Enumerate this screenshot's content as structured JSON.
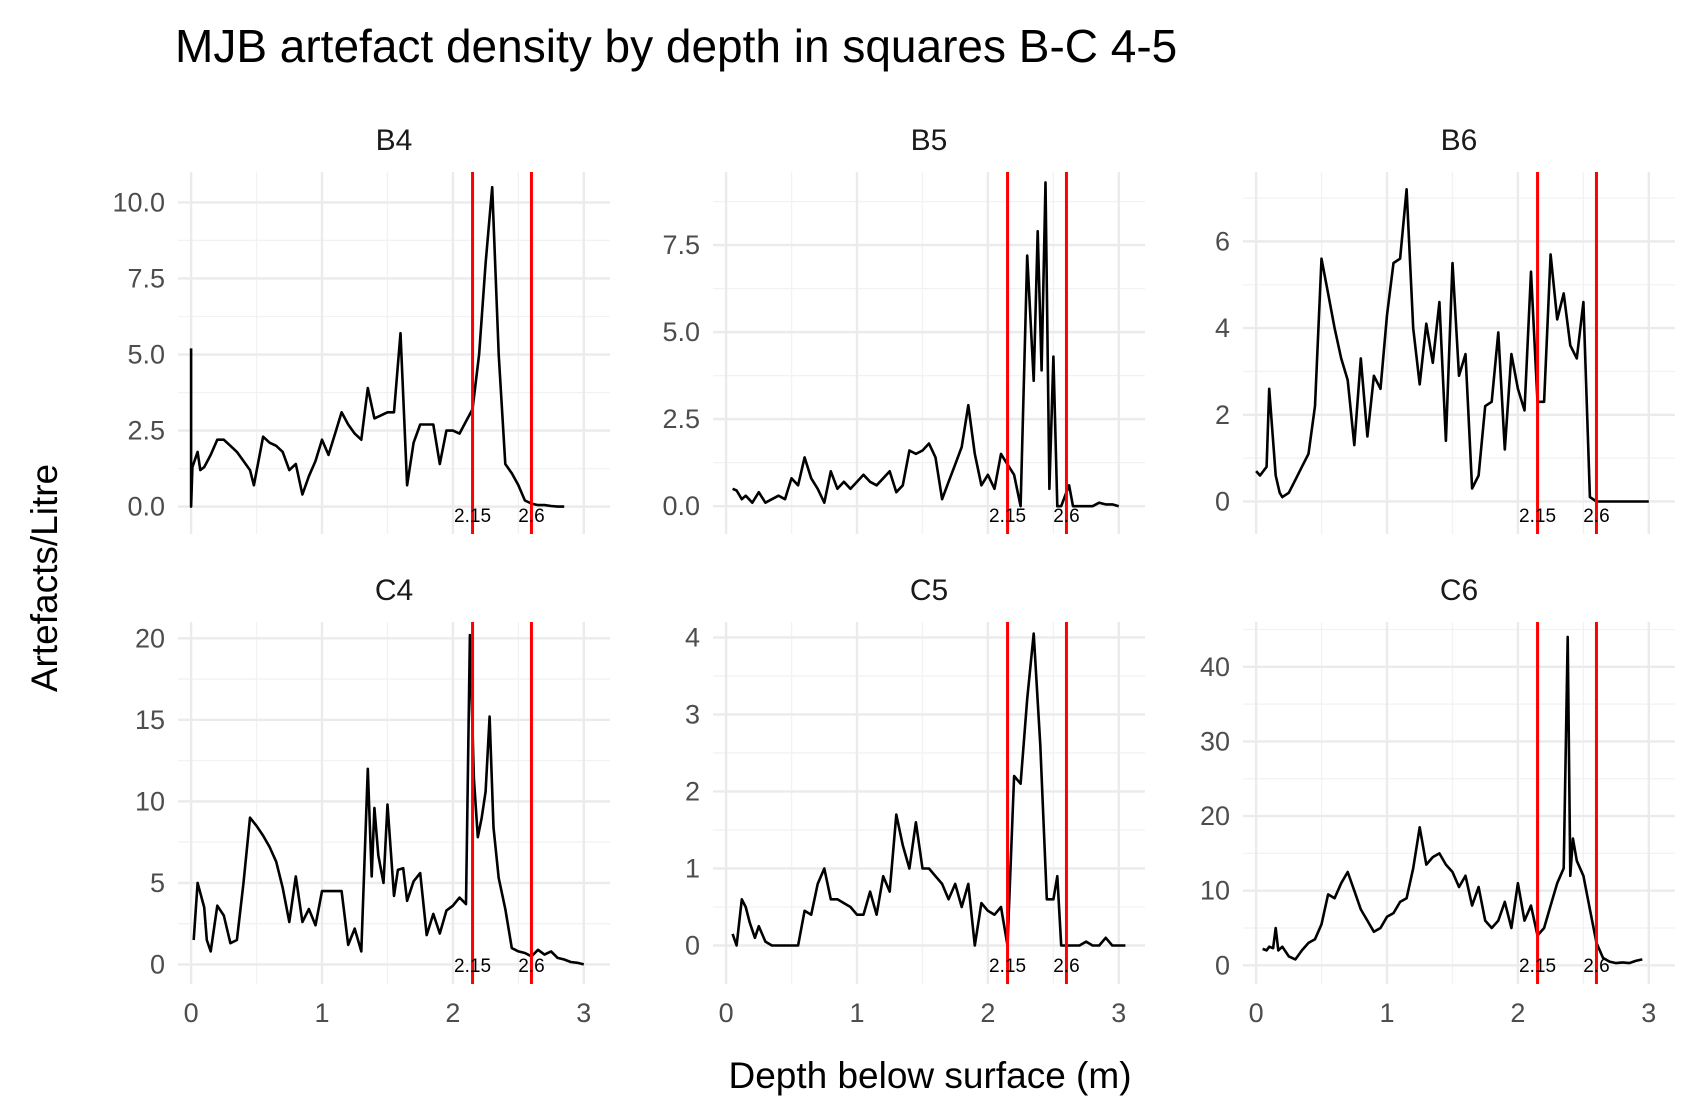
{
  "chart_data": {
    "type": "line",
    "title": "MJB artefact density by depth in squares B-C 4-5",
    "xlabel": "Depth below surface (m)",
    "ylabel": "Artefacts/Litre",
    "xlim": [
      -0.1,
      3.2
    ],
    "x_ticks": [
      0,
      1,
      2,
      3
    ],
    "grid": true,
    "legend": "none",
    "vlines": [
      2.15,
      2.6
    ],
    "vline_labels": [
      "2.15",
      "2.6"
    ],
    "vline_color": "#ff0000",
    "line_color": "#000000",
    "panels": [
      {
        "name": "B4",
        "ylim": [
          -0.9,
          11.0
        ],
        "y_ticks": [
          0,
          2.5,
          5,
          7.5,
          10
        ],
        "y_tick_labels": [
          "0.0",
          "2.5",
          "5.0",
          "7.5",
          "10.0"
        ],
        "x": [
          0.0,
          0.0,
          0.01,
          0.05,
          0.07,
          0.1,
          0.15,
          0.2,
          0.25,
          0.3,
          0.35,
          0.4,
          0.45,
          0.48,
          0.55,
          0.6,
          0.65,
          0.7,
          0.75,
          0.8,
          0.85,
          0.9,
          0.95,
          1.0,
          1.05,
          1.1,
          1.15,
          1.2,
          1.25,
          1.3,
          1.35,
          1.4,
          1.45,
          1.5,
          1.55,
          1.6,
          1.65,
          1.7,
          1.75,
          1.8,
          1.85,
          1.9,
          1.95,
          2.0,
          2.05,
          2.1,
          2.15,
          2.2,
          2.25,
          2.3,
          2.35,
          2.4,
          2.45,
          2.5,
          2.55,
          2.6,
          2.65,
          2.7,
          2.75,
          2.8,
          2.85
        ],
        "y": [
          5.2,
          0.0,
          1.3,
          1.8,
          1.2,
          1.3,
          1.7,
          2.2,
          2.2,
          2.0,
          1.8,
          1.5,
          1.2,
          0.7,
          2.3,
          2.1,
          2.0,
          1.8,
          1.2,
          1.4,
          0.4,
          1.0,
          1.5,
          2.2,
          1.7,
          2.4,
          3.1,
          2.7,
          2.4,
          2.2,
          3.9,
          2.9,
          3.0,
          3.1,
          3.1,
          5.7,
          0.7,
          2.1,
          2.7,
          2.7,
          2.7,
          1.4,
          2.5,
          2.5,
          2.4,
          2.8,
          3.2,
          5.0,
          8.0,
          10.5,
          5.0,
          1.4,
          1.1,
          0.7,
          0.2,
          0.1,
          0.05,
          0.05,
          0.02,
          0.0,
          0.0
        ]
      },
      {
        "name": "B5",
        "ylim": [
          -0.8,
          9.6
        ],
        "y_ticks": [
          0,
          2.5,
          5,
          7.5
        ],
        "y_tick_labels": [
          "0.0",
          "2.5",
          "5.0",
          "7.5"
        ],
        "x": [
          0.05,
          0.08,
          0.12,
          0.15,
          0.2,
          0.25,
          0.3,
          0.35,
          0.4,
          0.45,
          0.5,
          0.55,
          0.6,
          0.65,
          0.7,
          0.75,
          0.8,
          0.85,
          0.9,
          0.95,
          1.0,
          1.05,
          1.1,
          1.15,
          1.2,
          1.25,
          1.3,
          1.35,
          1.4,
          1.45,
          1.5,
          1.55,
          1.6,
          1.65,
          1.7,
          1.75,
          1.8,
          1.85,
          1.9,
          1.95,
          2.0,
          2.05,
          2.1,
          2.15,
          2.2,
          2.25,
          2.3,
          2.35,
          2.38,
          2.41,
          2.44,
          2.47,
          2.5,
          2.53,
          2.56,
          2.59,
          2.62,
          2.65,
          2.7,
          2.75,
          2.8,
          2.85,
          2.9,
          2.95,
          3.0
        ],
        "y": [
          0.5,
          0.45,
          0.2,
          0.3,
          0.1,
          0.4,
          0.1,
          0.2,
          0.3,
          0.2,
          0.8,
          0.6,
          1.4,
          0.8,
          0.5,
          0.1,
          1.0,
          0.5,
          0.7,
          0.5,
          0.7,
          0.9,
          0.7,
          0.6,
          0.8,
          1.0,
          0.4,
          0.6,
          1.6,
          1.5,
          1.6,
          1.8,
          1.4,
          0.2,
          0.7,
          1.2,
          1.7,
          2.9,
          1.5,
          0.6,
          0.9,
          0.5,
          1.5,
          1.2,
          0.9,
          0.0,
          7.2,
          3.6,
          7.9,
          3.9,
          9.3,
          0.5,
          4.3,
          0.0,
          0.0,
          0.3,
          0.6,
          0.0,
          0.0,
          0.0,
          0.0,
          0.1,
          0.05,
          0.05,
          0.0
        ]
      },
      {
        "name": "B6",
        "ylim": [
          -0.75,
          7.6
        ],
        "y_ticks": [
          0,
          2,
          4,
          6
        ],
        "y_tick_labels": [
          "0",
          "2",
          "4",
          "6"
        ],
        "x": [
          0.0,
          0.03,
          0.08,
          0.1,
          0.15,
          0.18,
          0.2,
          0.25,
          0.3,
          0.35,
          0.4,
          0.45,
          0.5,
          0.55,
          0.6,
          0.65,
          0.7,
          0.75,
          0.8,
          0.85,
          0.9,
          0.95,
          1.0,
          1.05,
          1.1,
          1.15,
          1.2,
          1.25,
          1.3,
          1.35,
          1.4,
          1.45,
          1.5,
          1.55,
          1.6,
          1.65,
          1.7,
          1.75,
          1.8,
          1.85,
          1.9,
          1.95,
          2.0,
          2.05,
          2.1,
          2.15,
          2.2,
          2.25,
          2.3,
          2.35,
          2.4,
          2.45,
          2.5,
          2.55,
          2.6,
          2.65,
          2.7,
          2.75,
          2.8,
          2.85,
          2.9,
          2.95,
          3.0
        ],
        "y": [
          0.7,
          0.6,
          0.8,
          2.6,
          0.6,
          0.2,
          0.1,
          0.2,
          0.5,
          0.8,
          1.1,
          2.2,
          5.6,
          4.8,
          4.0,
          3.3,
          2.8,
          1.3,
          3.3,
          1.5,
          2.9,
          2.6,
          4.3,
          5.5,
          5.6,
          7.2,
          4.0,
          2.7,
          4.1,
          3.2,
          4.6,
          1.4,
          5.5,
          2.9,
          3.4,
          0.3,
          0.6,
          2.2,
          2.3,
          3.9,
          1.2,
          3.4,
          2.6,
          2.1,
          5.3,
          2.3,
          2.3,
          5.7,
          4.2,
          4.8,
          3.6,
          3.3,
          4.6,
          0.1,
          0.0,
          0.0,
          0.0,
          0.0,
          0.0,
          0.0,
          0.0,
          0.0,
          0.0
        ]
      },
      {
        "name": "C4",
        "ylim": [
          -1.2,
          21.0
        ],
        "y_ticks": [
          0,
          5,
          10,
          15,
          20
        ],
        "y_tick_labels": [
          "0",
          "5",
          "10",
          "15",
          "20"
        ],
        "x": [
          0.02,
          0.05,
          0.1,
          0.12,
          0.15,
          0.2,
          0.25,
          0.3,
          0.35,
          0.4,
          0.45,
          0.5,
          0.55,
          0.6,
          0.65,
          0.7,
          0.75,
          0.8,
          0.85,
          0.9,
          0.95,
          1.0,
          1.05,
          1.1,
          1.15,
          1.2,
          1.25,
          1.3,
          1.35,
          1.38,
          1.4,
          1.43,
          1.47,
          1.5,
          1.55,
          1.58,
          1.62,
          1.65,
          1.7,
          1.75,
          1.8,
          1.85,
          1.9,
          1.95,
          2.0,
          2.05,
          2.1,
          2.13,
          2.16,
          2.19,
          2.22,
          2.25,
          2.28,
          2.31,
          2.35,
          2.4,
          2.45,
          2.5,
          2.55,
          2.6,
          2.65,
          2.7,
          2.75,
          2.8,
          2.85,
          2.9,
          2.95,
          3.0
        ],
        "y": [
          1.5,
          5.0,
          3.5,
          1.5,
          0.8,
          3.6,
          3.0,
          1.3,
          1.5,
          5.0,
          9.0,
          8.5,
          7.9,
          7.2,
          6.3,
          4.7,
          2.6,
          5.4,
          2.6,
          3.4,
          2.4,
          4.5,
          4.5,
          4.5,
          4.5,
          1.2,
          2.2,
          0.8,
          12.0,
          5.4,
          9.6,
          6.7,
          5.0,
          9.8,
          4.2,
          5.8,
          5.9,
          3.9,
          5.1,
          5.6,
          1.8,
          3.1,
          1.9,
          3.3,
          3.6,
          4.1,
          3.7,
          20.2,
          11.4,
          7.8,
          9.0,
          10.6,
          15.2,
          8.4,
          5.3,
          3.4,
          1.0,
          0.8,
          0.7,
          0.5,
          0.9,
          0.6,
          0.8,
          0.4,
          0.3,
          0.15,
          0.1,
          0.0
        ]
      },
      {
        "name": "C5",
        "ylim": [
          -0.5,
          4.2
        ],
        "y_ticks": [
          0,
          1,
          2,
          3,
          4
        ],
        "y_tick_labels": [
          "0",
          "1",
          "2",
          "3",
          "4"
        ],
        "x": [
          0.05,
          0.08,
          0.12,
          0.15,
          0.18,
          0.22,
          0.25,
          0.3,
          0.35,
          0.4,
          0.45,
          0.5,
          0.55,
          0.6,
          0.65,
          0.7,
          0.75,
          0.8,
          0.85,
          0.9,
          0.95,
          1.0,
          1.05,
          1.1,
          1.15,
          1.2,
          1.25,
          1.3,
          1.35,
          1.4,
          1.45,
          1.5,
          1.55,
          1.6,
          1.65,
          1.7,
          1.75,
          1.8,
          1.85,
          1.9,
          1.95,
          2.0,
          2.05,
          2.1,
          2.15,
          2.2,
          2.25,
          2.3,
          2.35,
          2.4,
          2.45,
          2.5,
          2.53,
          2.56,
          2.6,
          2.65,
          2.7,
          2.75,
          2.8,
          2.85,
          2.9,
          2.95,
          3.0,
          3.05
        ],
        "y": [
          0.15,
          0.0,
          0.6,
          0.5,
          0.3,
          0.1,
          0.25,
          0.05,
          0.0,
          0.0,
          0.0,
          0.0,
          0.0,
          0.45,
          0.4,
          0.8,
          1.0,
          0.6,
          0.6,
          0.55,
          0.5,
          0.4,
          0.4,
          0.7,
          0.4,
          0.9,
          0.7,
          1.7,
          1.3,
          1.0,
          1.6,
          1.0,
          1.0,
          0.9,
          0.8,
          0.6,
          0.8,
          0.5,
          0.8,
          0.0,
          0.55,
          0.45,
          0.4,
          0.5,
          0.0,
          2.2,
          2.1,
          3.2,
          4.05,
          2.6,
          0.6,
          0.6,
          0.9,
          0.0,
          0.0,
          0.0,
          0.0,
          0.05,
          0.0,
          0.0,
          0.1,
          0.0,
          0.0,
          0.0
        ]
      },
      {
        "name": "C6",
        "ylim": [
          -2.5,
          46.0
        ],
        "y_ticks": [
          0,
          10,
          20,
          30,
          40
        ],
        "y_tick_labels": [
          "0",
          "10",
          "20",
          "30",
          "40"
        ],
        "x": [
          0.05,
          0.08,
          0.1,
          0.13,
          0.15,
          0.17,
          0.2,
          0.25,
          0.3,
          0.35,
          0.4,
          0.45,
          0.5,
          0.55,
          0.6,
          0.65,
          0.7,
          0.75,
          0.8,
          0.85,
          0.9,
          0.95,
          1.0,
          1.05,
          1.1,
          1.15,
          1.2,
          1.25,
          1.3,
          1.35,
          1.4,
          1.45,
          1.5,
          1.55,
          1.6,
          1.65,
          1.7,
          1.75,
          1.8,
          1.85,
          1.9,
          1.95,
          2.0,
          2.05,
          2.1,
          2.15,
          2.2,
          2.25,
          2.3,
          2.35,
          2.38,
          2.4,
          2.42,
          2.45,
          2.5,
          2.55,
          2.6,
          2.65,
          2.7,
          2.75,
          2.8,
          2.85,
          2.9,
          2.95
        ],
        "y": [
          2.2,
          2.0,
          2.5,
          2.3,
          5.0,
          2.0,
          2.5,
          1.2,
          0.8,
          2.0,
          3.0,
          3.5,
          5.5,
          9.5,
          9.0,
          11.0,
          12.5,
          10.0,
          7.5,
          6.0,
          4.5,
          5.0,
          6.5,
          7.0,
          8.5,
          9.0,
          13.0,
          18.5,
          13.5,
          14.5,
          15.0,
          13.5,
          12.5,
          10.5,
          12.0,
          8.0,
          10.5,
          6.0,
          5.0,
          6.0,
          8.5,
          5.0,
          11.0,
          6.0,
          8.0,
          4.0,
          5.0,
          8.0,
          11.0,
          13.0,
          44.0,
          12.0,
          17.0,
          14.0,
          12.0,
          7.5,
          3.0,
          1.0,
          0.5,
          0.3,
          0.4,
          0.3,
          0.6,
          0.8
        ]
      }
    ]
  }
}
